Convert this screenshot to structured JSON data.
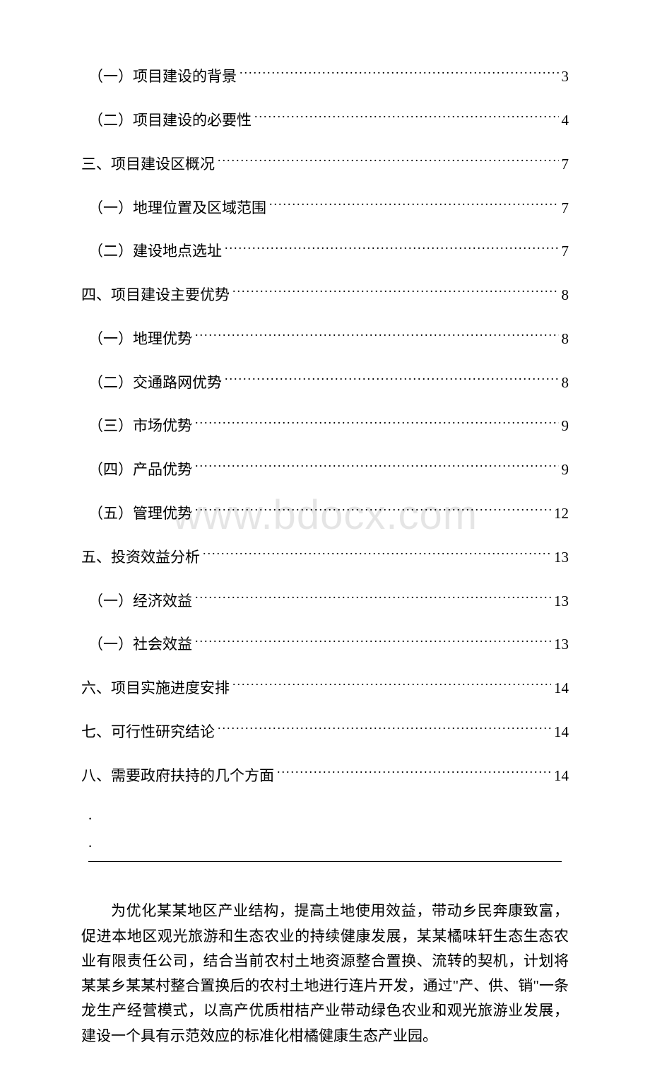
{
  "watermark": "www.bdocx.com",
  "toc": [
    {
      "label": "（一）项目建设的背景",
      "page": "3",
      "indent": true
    },
    {
      "label": "（二）项目建设的必要性",
      "page": "4",
      "indent": true
    },
    {
      "label": "三、项目建设区概况",
      "page": "7",
      "indent": false
    },
    {
      "label": "（一）地理位置及区域范围",
      "page": "7",
      "indent": true
    },
    {
      "label": "（二）建设地点选址",
      "page": "7",
      "indent": true
    },
    {
      "label": "四、项目建设主要优势",
      "page": "8",
      "indent": false
    },
    {
      "label": "（一）地理优势",
      "page": "8",
      "indent": true
    },
    {
      "label": "（二）交通路网优势",
      "page": "8",
      "indent": true
    },
    {
      "label": "（三）市场优势",
      "page": "9",
      "indent": true
    },
    {
      "label": "（四）产品优势",
      "page": "9",
      "indent": true
    },
    {
      "label": "（五）管理优势",
      "page": "12",
      "indent": true
    },
    {
      "label": "五、投资效益分析",
      "page": "13",
      "indent": false
    },
    {
      "label": "（一）经济效益",
      "page": "13",
      "indent": true
    },
    {
      "label": "（一）社会效益",
      "page": "13",
      "indent": true
    },
    {
      "label": "六、项目实施进度安排",
      "page": "14",
      "indent": false
    },
    {
      "label": "七、可行性研究结论",
      "page": "14",
      "indent": false
    },
    {
      "label": "八、需要政府扶持的几个方面",
      "page": "14",
      "indent": false
    }
  ],
  "dot1": ".",
  "dot2": ".",
  "paragraph": "为优化某某地区产业结构，提高土地使用效益，带动乡民奔康致富，促进本地区观光旅游和生态农业的持续健康发展，某某橘味轩生态生态农业有限责任公司，结合当前农村土地资源整合置换、流转的契机，计划将某某乡某某村整合置换后的农村土地进行连片开发，通过\"产、供、销\"一条龙生产经营模式，以高产优质柑桔产业带动绿色农业和观光旅游业发展，建设一个具有示范效应的标准化柑橘健康生态产业园。"
}
